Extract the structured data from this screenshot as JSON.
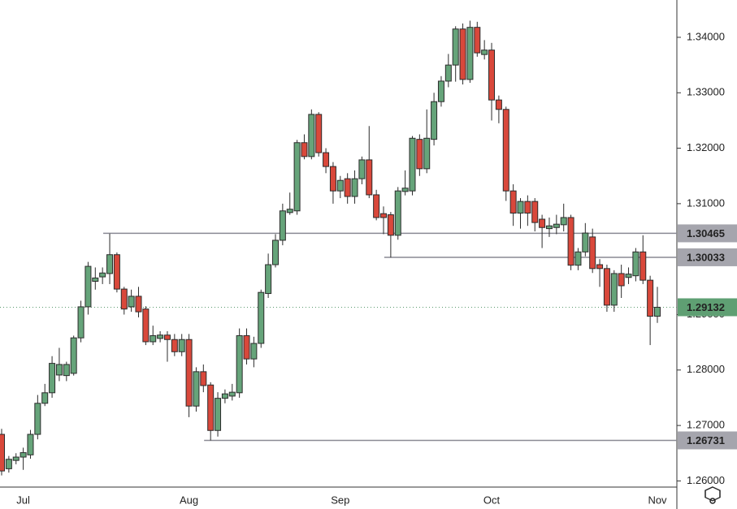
{
  "chart_data": {
    "type": "candlestick",
    "categories": [
      null,
      null,
      null,
      "Jul",
      null,
      null,
      null,
      null,
      null,
      null,
      null,
      null,
      null,
      null,
      null,
      null,
      null,
      null,
      null,
      null,
      null,
      null,
      null,
      null,
      null,
      null,
      "Aug",
      null,
      null,
      null,
      null,
      null,
      null,
      null,
      null,
      null,
      null,
      null,
      null,
      null,
      null,
      null,
      null,
      null,
      null,
      null,
      null,
      "Sep",
      null,
      null,
      null,
      null,
      null,
      null,
      null,
      null,
      null,
      null,
      null,
      null,
      null,
      null,
      null,
      null,
      null,
      null,
      null,
      null,
      "Oct",
      null,
      null,
      null,
      null,
      null,
      null,
      null,
      null,
      null,
      null,
      null,
      null,
      null,
      null,
      null,
      null,
      null,
      null,
      null,
      null,
      null,
      null,
      "Nov"
    ],
    "open": [
      1.2684,
      1.2622,
      1.2637,
      1.2643,
      1.2647,
      1.2684,
      1.274,
      1.2759,
      1.2791,
      1.279,
      1.2794,
      1.2858,
      1.2914,
      1.296,
      1.2968,
      1.2974,
      1.3008,
      1.2946,
      1.2914,
      1.2933,
      1.291,
      1.2851,
      1.2857,
      1.2863,
      1.2855,
      1.2833,
      1.2855,
      1.2735,
      1.2797,
      1.2773,
      1.2691,
      1.2749,
      1.2753,
      1.2759,
      1.2862,
      1.282,
      1.2848,
      1.2938,
      1.299,
      1.3034,
      1.3084,
      1.3087,
      1.321,
      1.3185,
      1.3261,
      1.3192,
      1.3167,
      1.3123,
      1.3145,
      1.3113,
      1.3145,
      1.3179,
      1.3116,
      1.3082,
      1.308,
      1.3043,
      1.3122,
      1.3123,
      1.3216,
      1.3163,
      1.3216,
      1.3284,
      1.3321,
      1.335,
      1.3415,
      1.3324,
      1.3418,
      1.3369,
      1.3377,
      1.3287,
      1.327,
      1.3123,
      1.3083,
      1.3104,
      1.3104,
      1.3072,
      1.3055,
      1.3057,
      1.3062,
      1.3075,
      1.2989,
      1.3013,
      1.304,
      1.299,
      1.2983,
      1.2917,
      1.2974,
      1.2967,
      1.297,
      1.3013,
      1.2962,
      1.2897
    ],
    "high": [
      1.2694,
      1.2645,
      1.265,
      1.266,
      1.2692,
      1.2755,
      1.2775,
      1.2825,
      1.284,
      1.2815,
      1.2862,
      1.2925,
      1.2995,
      1.2985,
      1.2985,
      1.3046,
      1.3012,
      1.295,
      1.2945,
      1.295,
      1.2915,
      1.288,
      1.287,
      1.287,
      1.2865,
      1.2865,
      1.2865,
      1.2805,
      1.281,
      1.2778,
      1.276,
      1.2765,
      1.2775,
      1.2875,
      1.2875,
      1.286,
      1.2945,
      1.301,
      1.3045,
      1.31,
      1.312,
      1.3215,
      1.3225,
      1.327,
      1.3265,
      1.32,
      1.3175,
      1.315,
      1.3155,
      1.316,
      1.3185,
      1.324,
      1.3125,
      1.3095,
      1.3085,
      1.313,
      1.316,
      1.3222,
      1.3225,
      1.327,
      1.33,
      1.333,
      1.337,
      1.342,
      1.3425,
      1.343,
      1.3428,
      1.3395,
      1.339,
      1.3295,
      1.3275,
      1.3135,
      1.311,
      1.3115,
      1.311,
      1.308,
      1.3075,
      1.308,
      1.31,
      1.308,
      1.302,
      1.3065,
      1.3055,
      1.3,
      1.299,
      1.298,
      1.299,
      1.2985,
      1.302,
      1.3043,
      1.297,
      1.295
    ],
    "low": [
      1.261,
      1.2615,
      1.263,
      1.262,
      1.264,
      1.2675,
      1.2735,
      1.275,
      1.278,
      1.278,
      1.279,
      1.285,
      1.29,
      1.2945,
      1.2955,
      1.2955,
      1.294,
      1.29,
      1.2905,
      1.2895,
      1.2845,
      1.2845,
      1.285,
      1.2815,
      1.2825,
      1.2825,
      1.2715,
      1.2725,
      1.276,
      1.2673,
      1.268,
      1.274,
      1.2745,
      1.275,
      1.281,
      1.2805,
      1.284,
      1.293,
      1.2985,
      1.3025,
      1.308,
      1.308,
      1.318,
      1.318,
      1.3185,
      1.3155,
      1.31,
      1.311,
      1.31,
      1.31,
      1.3135,
      1.311,
      1.307,
      1.3045,
      1.3003,
      1.3035,
      1.3115,
      1.3115,
      1.315,
      1.3155,
      1.3205,
      1.3275,
      1.331,
      1.332,
      1.3315,
      1.3318,
      1.3365,
      1.336,
      1.325,
      1.3245,
      1.3105,
      1.306,
      1.3055,
      1.306,
      1.305,
      1.302,
      1.304,
      1.3045,
      1.305,
      1.298,
      1.298,
      1.3005,
      1.2975,
      1.295,
      1.2905,
      1.2905,
      1.293,
      1.2955,
      1.296,
      1.2955,
      1.2845,
      1.2885
    ],
    "close": [
      1.2618,
      1.2639,
      1.2643,
      1.2651,
      1.2684,
      1.274,
      1.2759,
      1.2812,
      1.281,
      1.281,
      1.2858,
      1.2914,
      1.2987,
      1.2966,
      1.2975,
      1.3008,
      1.2946,
      1.291,
      1.2933,
      1.2905,
      1.2851,
      1.2862,
      1.2863,
      1.2855,
      1.2833,
      1.2855,
      1.2735,
      1.2797,
      1.2772,
      1.2691,
      1.2749,
      1.2757,
      1.276,
      1.2862,
      1.282,
      1.2848,
      1.294,
      1.299,
      1.3034,
      1.3087,
      1.309,
      1.321,
      1.3185,
      1.3261,
      1.3192,
      1.3167,
      1.3123,
      1.3142,
      1.3113,
      1.3145,
      1.3179,
      1.3116,
      1.3075,
      1.3075,
      1.3043,
      1.3123,
      1.3128,
      1.3218,
      1.3163,
      1.3218,
      1.3284,
      1.3321,
      1.335,
      1.3415,
      1.3324,
      1.3418,
      1.3372,
      1.3377,
      1.3287,
      1.327,
      1.3123,
      1.3083,
      1.3104,
      1.3083,
      1.3066,
      1.3057,
      1.306,
      1.3063,
      1.3075,
      1.2989,
      1.3013,
      1.3047,
      1.2983,
      1.2983,
      1.2917,
      1.2974,
      1.2952,
      1.2973,
      1.3013,
      1.2962,
      1.2897,
      1.29132
    ],
    "up_color": "#66a47a",
    "down_color": "#d9483b",
    "ylim": [
      1.25889,
      1.34673
    ],
    "yticks": [
      {
        "value": 1.26,
        "label": "1.26000"
      },
      {
        "value": 1.27,
        "label": "1.27000"
      },
      {
        "value": 1.28,
        "label": "1.28000"
      },
      {
        "value": 1.29,
        "label": "1.29000"
      },
      {
        "value": 1.31,
        "label": "1.31000"
      },
      {
        "value": 1.32,
        "label": "1.32000"
      },
      {
        "value": 1.33,
        "label": "1.33000"
      },
      {
        "value": 1.34,
        "label": "1.34000"
      }
    ],
    "levels": [
      {
        "value": 1.30465,
        "from": 15
      },
      {
        "value": 1.30033,
        "from": 54
      },
      {
        "value": 1.26731,
        "from": 29
      }
    ]
  }
}
